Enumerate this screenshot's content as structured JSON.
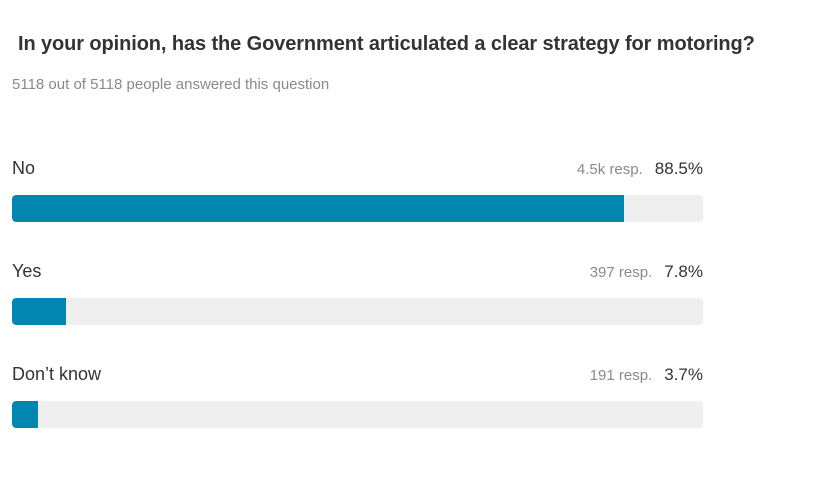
{
  "question": {
    "title": "In your opinion, has the Government articulated a clear strategy for motoring?",
    "answered_text": "5118 out of 5118 people answered this question"
  },
  "colors": {
    "bar_fill": "#0086b0",
    "bar_track": "#efefef"
  },
  "options": [
    {
      "label": "No",
      "responses": "4.5k resp.",
      "percent": "88.5%",
      "fill_fraction": 0.885
    },
    {
      "label": "Yes",
      "responses": "397 resp.",
      "percent": "7.8%",
      "fill_fraction": 0.078
    },
    {
      "label": "Don’t know",
      "responses": "191 resp.",
      "percent": "3.7%",
      "fill_fraction": 0.037
    }
  ]
}
